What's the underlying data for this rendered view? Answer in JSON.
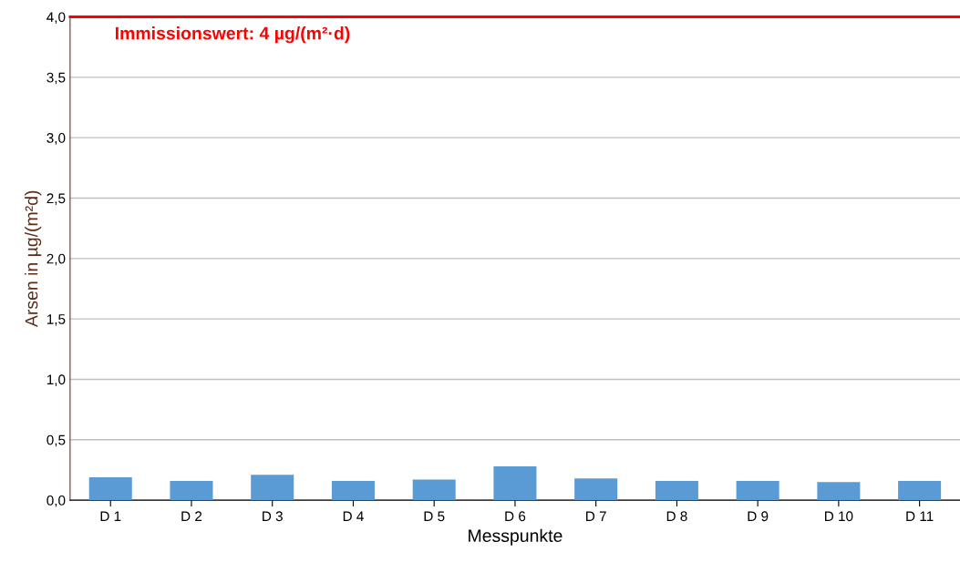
{
  "chart_data": {
    "type": "bar",
    "xlabel": "Messpunkte",
    "ylabel": "Arsen in µg/(m²d)",
    "categories": [
      "D 1",
      "D 2",
      "D 3",
      "D 4",
      "D 5",
      "D 6",
      "D 7",
      "D 8",
      "D 9",
      "D 10",
      "D 11"
    ],
    "values": [
      0.19,
      0.16,
      0.21,
      0.16,
      0.17,
      0.28,
      0.18,
      0.16,
      0.16,
      0.15,
      0.16
    ],
    "color": "#5b9bd5",
    "ylim": [
      0,
      4.0
    ],
    "yticks": [
      {
        "value": 0,
        "label": "0,0"
      },
      {
        "value": 0.5,
        "label": "0,5"
      },
      {
        "value": 1.0,
        "label": "1,0"
      },
      {
        "value": 1.5,
        "label": "1,5"
      },
      {
        "value": 2.0,
        "label": "2,0"
      },
      {
        "value": 2.5,
        "label": "2,5"
      },
      {
        "value": 3.0,
        "label": "3,0"
      },
      {
        "value": 3.5,
        "label": "3,5"
      },
      {
        "value": 4.0,
        "label": "4,0"
      }
    ],
    "grid": "y",
    "ref_lines": [
      {
        "axis": "y",
        "value": 4.0,
        "label": "Immissionswert: 4 µg/(m²·d)",
        "color": "#ff0000"
      }
    ]
  }
}
